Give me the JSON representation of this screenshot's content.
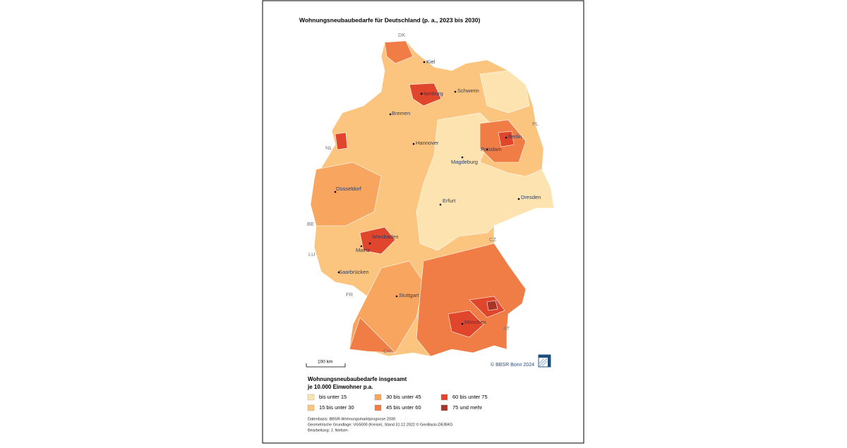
{
  "title": "Wohnungsneubaubedarfe für Deutschland (p. a., 2023 bis 2030)",
  "map": {
    "cities": [
      "Kiel",
      "Hamburg",
      "Schwerin",
      "Bremen",
      "Berlin",
      "Potsdam",
      "Hannover",
      "Magdeburg",
      "Düsseldorf",
      "Dresden",
      "Erfurt",
      "Wiesbaden",
      "Mainz",
      "Saarbrücken",
      "Stuttgart",
      "München"
    ],
    "countries": [
      "DK",
      "PL",
      "NL",
      "BE",
      "LU",
      "FR",
      "CH",
      "CZ",
      "AT"
    ],
    "scale_bar": "100 km",
    "copyright": "© BBSR Bonn 2024"
  },
  "legend": {
    "title": "Wohnungsneubaubedarfe insgesamt",
    "subtitle": "je 10.000 Einwohner p.a.",
    "classes": [
      {
        "label": "bis unter 15",
        "color": "#fde3b0"
      },
      {
        "label": "15 bis unter 30",
        "color": "#fcc57f"
      },
      {
        "label": "30 bis unter 45",
        "color": "#f8a560"
      },
      {
        "label": "45 bis unter 60",
        "color": "#ef7d45"
      },
      {
        "label": "60 bis unter 75",
        "color": "#e0462c"
      },
      {
        "label": "75 und mehr",
        "color": "#a8352a"
      }
    ]
  },
  "sources": [
    "Datenbasis: BBSR-Wohnungsmarktprognose 2030",
    "Geometrische Grundlage: VG5000 (Kreise), Stand 31.12.2022 © GeoBasis-DE/BKG",
    "Bearbeitung: J. Nielsen"
  ]
}
